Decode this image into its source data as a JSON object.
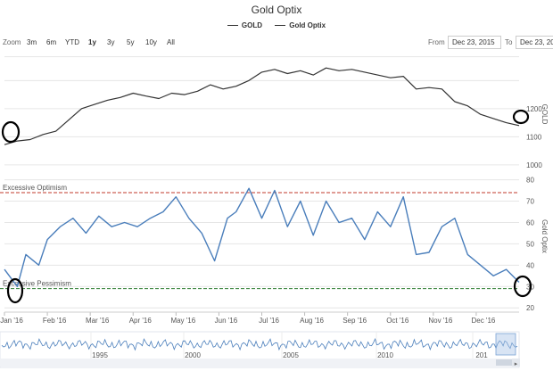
{
  "chart_data": {
    "type": "line",
    "title": "Gold Optix",
    "legend": [
      "GOLD",
      "Gold Optix"
    ],
    "range_selector": {
      "zoom_label": "Zoom",
      "buttons": [
        "3m",
        "6m",
        "YTD",
        "1y",
        "3y",
        "5y",
        "10y",
        "All"
      ],
      "active": "1y",
      "from_label": "From",
      "from_value": "Dec 23, 2015",
      "to_label": "To",
      "to_value": "Dec 23, 20"
    },
    "x_ticks": [
      "Jan '16",
      "Feb '16",
      "Mar '16",
      "Apr '16",
      "May '16",
      "Jun '16",
      "Jul '16",
      "Aug '16",
      "Sep '16",
      "Oct '16",
      "Nov '16",
      "Dec '16"
    ],
    "gold_axis": {
      "label": "GOLD",
      "ticks": [
        "1000",
        "1100",
        "1200"
      ],
      "range": [
        990,
        1390
      ]
    },
    "optix_axis": {
      "label": "Gold Optix",
      "ticks": [
        "20",
        "30",
        "40",
        "50",
        "60",
        "70",
        "80"
      ],
      "range": [
        18,
        84
      ]
    },
    "x_range": [
      0,
      12
    ],
    "series": [
      {
        "name": "GOLD",
        "color": "#333333",
        "x": [
          0.0,
          0.3,
          0.6,
          0.9,
          1.2,
          1.5,
          1.8,
          2.1,
          2.4,
          2.7,
          3.0,
          3.3,
          3.6,
          3.9,
          4.2,
          4.5,
          4.8,
          5.1,
          5.4,
          5.7,
          6.0,
          6.3,
          6.6,
          6.9,
          7.2,
          7.5,
          7.8,
          8.1,
          8.4,
          8.7,
          9.0,
          9.3,
          9.6,
          9.9,
          10.2,
          10.5,
          10.8,
          11.1,
          11.4,
          11.7,
          12.0
        ],
        "y": [
          1072,
          1085,
          1090,
          1108,
          1120,
          1160,
          1200,
          1215,
          1230,
          1240,
          1255,
          1245,
          1236,
          1255,
          1250,
          1262,
          1285,
          1270,
          1280,
          1300,
          1330,
          1340,
          1325,
          1335,
          1320,
          1345,
          1335,
          1340,
          1330,
          1320,
          1310,
          1315,
          1270,
          1275,
          1270,
          1225,
          1210,
          1180,
          1165,
          1150,
          1140
        ]
      },
      {
        "name": "Gold Optix",
        "color": "#4a7ebb",
        "x": [
          0.0,
          0.3,
          0.5,
          0.8,
          1.0,
          1.3,
          1.6,
          1.9,
          2.2,
          2.5,
          2.8,
          3.1,
          3.4,
          3.7,
          4.0,
          4.3,
          4.6,
          4.9,
          5.2,
          5.4,
          5.7,
          6.0,
          6.3,
          6.6,
          6.9,
          7.2,
          7.5,
          7.8,
          8.1,
          8.4,
          8.7,
          9.0,
          9.3,
          9.6,
          9.9,
          10.2,
          10.5,
          10.8,
          11.1,
          11.4,
          11.7,
          12.0
        ],
        "y": [
          38,
          30,
          45,
          40,
          52,
          58,
          62,
          55,
          63,
          58,
          60,
          58,
          62,
          65,
          72,
          62,
          55,
          42,
          62,
          65,
          76,
          62,
          75,
          58,
          70,
          54,
          70,
          60,
          62,
          52,
          65,
          58,
          72,
          45,
          46,
          58,
          62,
          45,
          40,
          35,
          38,
          32
        ]
      }
    ],
    "reference_lines": [
      {
        "label": "Excessive Optimism",
        "value": 74,
        "color": "#c0392b"
      },
      {
        "label": "Excessive Pessimism",
        "value": 29,
        "color": "#2e7d32"
      }
    ],
    "navigator": {
      "ticks": [
        "1995",
        "2000",
        "2005",
        "2010",
        "201"
      ]
    }
  }
}
